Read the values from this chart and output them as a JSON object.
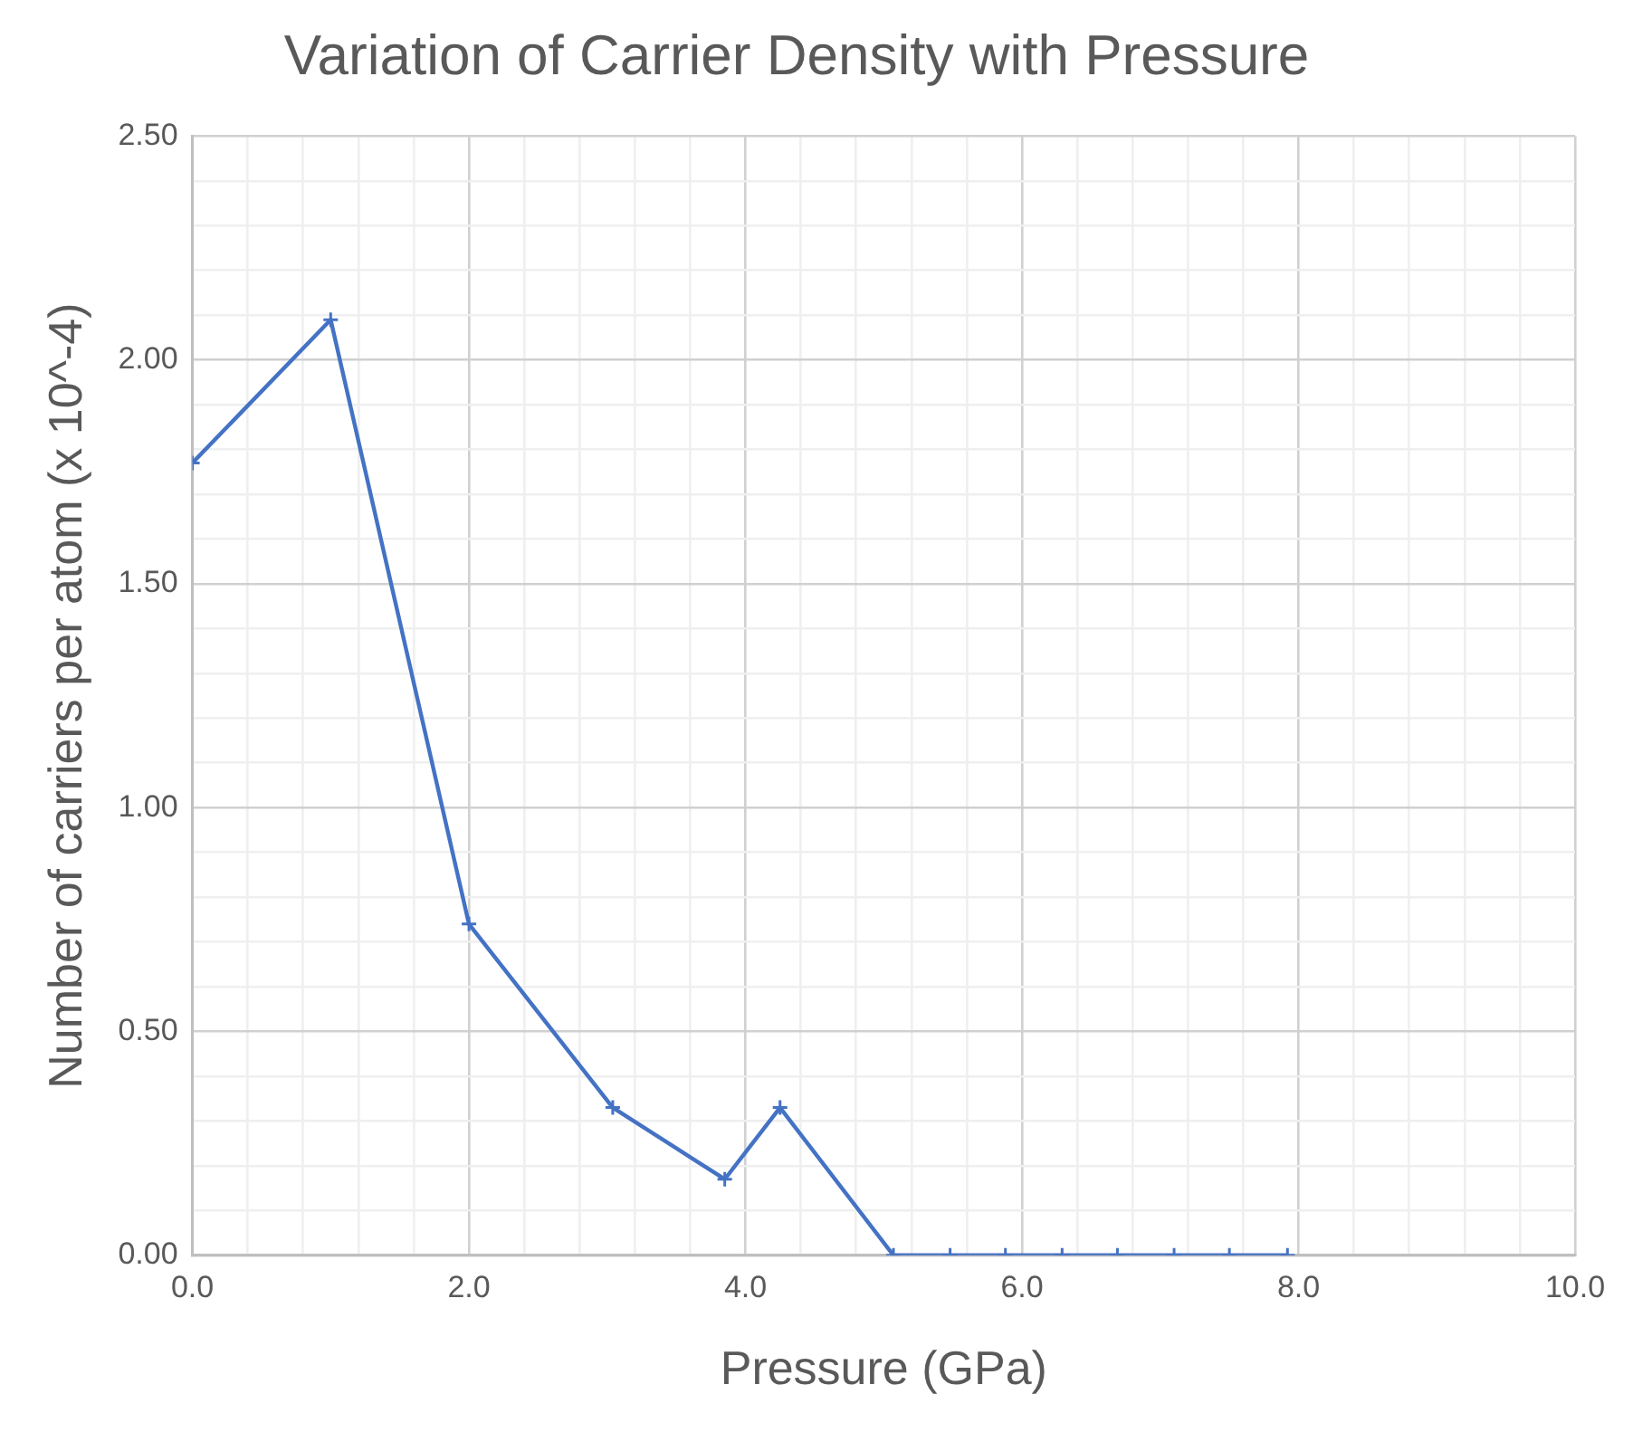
{
  "chart_data": {
    "type": "line",
    "title": "Variation of Carrier Density with Pressure",
    "xlabel": "Pressure (GPa)",
    "ylabel": "Number of carriers per atom (x 10^-4)",
    "x": [
      0.0,
      1.0,
      2.0,
      3.04,
      3.85,
      4.25,
      5.07,
      5.48,
      5.88,
      6.29,
      6.69,
      7.1,
      7.5,
      7.92
    ],
    "series": [
      {
        "color": "#4472c4",
        "values": [
          1.77,
          2.09,
          0.74,
          0.33,
          0.17,
          0.33,
          0,
          0,
          0,
          0,
          0,
          0,
          0,
          0
        ]
      }
    ],
    "xlim": [
      0,
      10
    ],
    "xticks": [
      {
        "value": 0,
        "label": "0.0"
      },
      {
        "value": 0.4,
        "label": null
      },
      {
        "value": 0.8,
        "label": null
      },
      {
        "value": 1.2,
        "label": null
      },
      {
        "value": 1.6,
        "label": null
      },
      {
        "value": 2,
        "label": "2.0"
      },
      {
        "value": 2.4,
        "label": null
      },
      {
        "value": 2.8,
        "label": null
      },
      {
        "value": 3.2,
        "label": null
      },
      {
        "value": 3.6,
        "label": null
      },
      {
        "value": 4,
        "label": "4.0"
      },
      {
        "value": 4.4,
        "label": null
      },
      {
        "value": 4.8,
        "label": null
      },
      {
        "value": 5.2,
        "label": null
      },
      {
        "value": 5.6,
        "label": null
      },
      {
        "value": 6,
        "label": "6.0"
      },
      {
        "value": 6.4,
        "label": null
      },
      {
        "value": 6.8,
        "label": null
      },
      {
        "value": 7.2,
        "label": null
      },
      {
        "value": 7.6,
        "label": null
      },
      {
        "value": 8,
        "label": "8.0"
      },
      {
        "value": 8.4,
        "label": null
      },
      {
        "value": 8.8,
        "label": null
      },
      {
        "value": 9.2,
        "label": null
      },
      {
        "value": 9.6,
        "label": null
      },
      {
        "value": 10,
        "label": "10.0"
      }
    ],
    "ylim": [
      0,
      2.5
    ],
    "yticks": [
      {
        "value": 0,
        "label": "0.00"
      },
      {
        "value": 0.1,
        "label": null
      },
      {
        "value": 0.2,
        "label": null
      },
      {
        "value": 0.3,
        "label": null
      },
      {
        "value": 0.4,
        "label": null
      },
      {
        "value": 0.5,
        "label": "0.50"
      },
      {
        "value": 0.6,
        "label": null
      },
      {
        "value": 0.7,
        "label": null
      },
      {
        "value": 0.8,
        "label": null
      },
      {
        "value": 0.9,
        "label": null
      },
      {
        "value": 1,
        "label": "1.00"
      },
      {
        "value": 1.1,
        "label": null
      },
      {
        "value": 1.2,
        "label": null
      },
      {
        "value": 1.3,
        "label": null
      },
      {
        "value": 1.4,
        "label": null
      },
      {
        "value": 1.5,
        "label": "1.50"
      },
      {
        "value": 1.6,
        "label": null
      },
      {
        "value": 1.7,
        "label": null
      },
      {
        "value": 1.8,
        "label": null
      },
      {
        "value": 1.9,
        "label": null
      },
      {
        "value": 2,
        "label": "2.00"
      },
      {
        "value": 2.1,
        "label": null
      },
      {
        "value": 2.2,
        "label": null
      },
      {
        "value": 2.3,
        "label": null
      },
      {
        "value": 2.4,
        "label": null
      },
      {
        "value": 2.5,
        "label": "2.50"
      }
    ],
    "grid": true,
    "legend": false,
    "marker": "cross",
    "line_style": "solid"
  }
}
